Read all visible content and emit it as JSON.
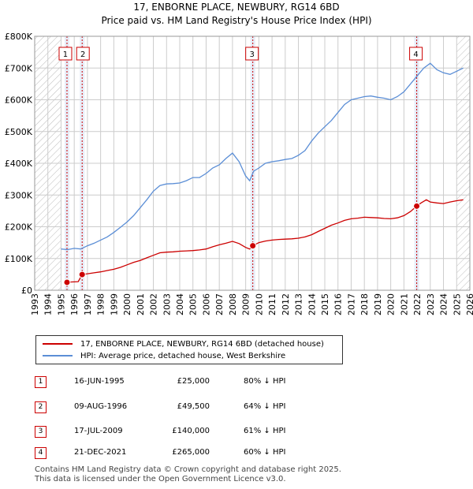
{
  "header": {
    "title": "17, ENBORNE PLACE, NEWBURY, RG14 6BD",
    "subtitle": "Price paid vs. HM Land Registry's House Price Index (HPI)"
  },
  "colors": {
    "price": "#cc0000",
    "hpi": "#5b8ed6",
    "band": "#dde6f5",
    "grid": "#cccccc"
  },
  "chart_data": {
    "type": "line",
    "title": "Price paid vs. HM Land Registry's House Price Index (HPI)",
    "xlim": [
      1993,
      2026
    ],
    "ylim": [
      0,
      800000
    ],
    "x_ticks": [
      1993,
      1994,
      1995,
      1996,
      1997,
      1998,
      1999,
      2000,
      2001,
      2002,
      2003,
      2004,
      2005,
      2006,
      2007,
      2008,
      2009,
      2010,
      2011,
      2012,
      2013,
      2014,
      2015,
      2016,
      2017,
      2018,
      2019,
      2020,
      2021,
      2022,
      2023,
      2024,
      2025,
      2026
    ],
    "y_ticks": [
      0,
      100000,
      200000,
      300000,
      400000,
      500000,
      600000,
      700000,
      800000
    ],
    "y_tick_labels": [
      "£0",
      "£100K",
      "£200K",
      "£300K",
      "£400K",
      "£500K",
      "£600K",
      "£700K",
      "£800K"
    ],
    "hatch_ranges": [
      [
        1993,
        1995.0
      ],
      [
        2025.0,
        2026
      ]
    ],
    "series": [
      {
        "name": "HPI: Average price, detached house, West Berkshire",
        "x": [
          1995.0,
          1995.5,
          1996.0,
          1996.5,
          1997.0,
          1997.5,
          1998.0,
          1998.5,
          1999.0,
          1999.5,
          2000.0,
          2000.5,
          2001.0,
          2001.5,
          2002.0,
          2002.5,
          2003.0,
          2003.5,
          2004.0,
          2004.5,
          2005.0,
          2005.5,
          2006.0,
          2006.5,
          2007.0,
          2007.5,
          2008.0,
          2008.5,
          2009.0,
          2009.3,
          2009.6,
          2010.0,
          2010.5,
          2011.0,
          2011.5,
          2012.0,
          2012.5,
          2013.0,
          2013.5,
          2014.0,
          2014.5,
          2015.0,
          2015.5,
          2016.0,
          2016.5,
          2017.0,
          2017.5,
          2018.0,
          2018.5,
          2019.0,
          2019.5,
          2020.0,
          2020.5,
          2021.0,
          2021.5,
          2022.0,
          2022.5,
          2023.0,
          2023.5,
          2024.0,
          2024.5,
          2025.0,
          2025.5
        ],
        "values": [
          130000,
          128000,
          132000,
          130000,
          140000,
          148000,
          158000,
          168000,
          182000,
          198000,
          215000,
          235000,
          260000,
          285000,
          312000,
          330000,
          335000,
          336000,
          338000,
          345000,
          355000,
          355000,
          368000,
          385000,
          395000,
          415000,
          432000,
          405000,
          360000,
          345000,
          375000,
          385000,
          400000,
          405000,
          408000,
          412000,
          415000,
          425000,
          440000,
          470000,
          495000,
          515000,
          535000,
          560000,
          585000,
          600000,
          605000,
          610000,
          612000,
          608000,
          605000,
          600000,
          610000,
          625000,
          650000,
          675000,
          700000,
          715000,
          695000,
          685000,
          680000,
          690000,
          700000
        ]
      },
      {
        "name": "17, ENBORNE PLACE, NEWBURY, RG14 6BD (detached house)",
        "x": [
          1995.45,
          1995.8,
          1996.3,
          1996.6,
          1997.0,
          1997.5,
          1998.0,
          1998.5,
          1999.0,
          1999.5,
          2000.0,
          2000.5,
          2001.0,
          2001.5,
          2002.0,
          2002.5,
          2003.0,
          2003.5,
          2004.0,
          2004.5,
          2005.0,
          2005.5,
          2006.0,
          2006.5,
          2007.0,
          2007.5,
          2008.0,
          2008.5,
          2009.0,
          2009.3,
          2009.54,
          2010.0,
          2010.5,
          2011.0,
          2011.5,
          2012.0,
          2012.5,
          2013.0,
          2013.5,
          2014.0,
          2014.5,
          2015.0,
          2015.5,
          2016.0,
          2016.5,
          2017.0,
          2017.5,
          2018.0,
          2018.5,
          2019.0,
          2019.5,
          2020.0,
          2020.5,
          2021.0,
          2021.5,
          2021.97,
          2022.3,
          2022.7,
          2023.0,
          2023.5,
          2024.0,
          2024.5,
          2025.0,
          2025.5
        ],
        "values": [
          25000,
          26000,
          27000,
          49500,
          52000,
          55000,
          58000,
          62000,
          66000,
          72000,
          80000,
          88000,
          94000,
          102000,
          110000,
          118000,
          120000,
          121000,
          123000,
          124000,
          125000,
          127000,
          130000,
          137000,
          143000,
          148000,
          154000,
          147000,
          135000,
          130000,
          140000,
          150000,
          155000,
          158000,
          160000,
          161000,
          162000,
          164000,
          168000,
          175000,
          185000,
          195000,
          205000,
          212000,
          220000,
          225000,
          227000,
          230000,
          229000,
          228000,
          226000,
          225000,
          228000,
          235000,
          248000,
          265000,
          275000,
          285000,
          278000,
          275000,
          273000,
          278000,
          282000,
          285000
        ]
      }
    ],
    "sales": [
      {
        "label": "1",
        "x": 1995.45,
        "value": 25000
      },
      {
        "label": "2",
        "x": 1996.6,
        "value": 49500
      },
      {
        "label": "3",
        "x": 2009.54,
        "value": 140000
      },
      {
        "label": "4",
        "x": 2021.97,
        "value": 265000
      }
    ]
  },
  "legend": {
    "price_label": "17, ENBORNE PLACE, NEWBURY, RG14 6BD (detached house)",
    "hpi_label": "HPI: Average price, detached house, West Berkshire"
  },
  "transactions": [
    {
      "num": "1",
      "date": "16-JUN-1995",
      "price": "£25,000",
      "hpi": "80% ↓ HPI"
    },
    {
      "num": "2",
      "date": "09-AUG-1996",
      "price": "£49,500",
      "hpi": "64% ↓ HPI"
    },
    {
      "num": "3",
      "date": "17-JUL-2009",
      "price": "£140,000",
      "hpi": "61% ↓ HPI"
    },
    {
      "num": "4",
      "date": "21-DEC-2021",
      "price": "£265,000",
      "hpi": "60% ↓ HPI"
    }
  ],
  "footer": {
    "line1": "Contains HM Land Registry data © Crown copyright and database right 2025.",
    "line2": "This data is licensed under the Open Government Licence v3.0."
  }
}
